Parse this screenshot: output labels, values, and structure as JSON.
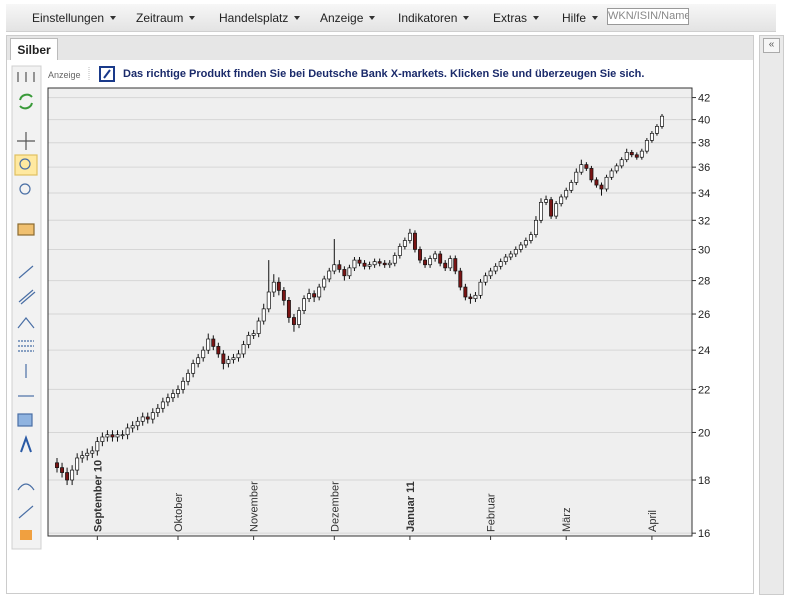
{
  "menu": [
    "Einstellungen",
    "Zeitraum",
    "Handelsplatz",
    "Anzeige",
    "Indikatoren",
    "Extras",
    "Hilfe"
  ],
  "search_placeholder": "WKN/ISIN/Name",
  "tab": "Silber",
  "ad": {
    "label": "Anzeige",
    "text": "Das richtige Produkt finden Sie bei Deutsche Bank X-markets. Klicken Sie und überzeugen Sie sich."
  },
  "chart_data": {
    "type": "candlestick",
    "log_scale": true,
    "grid": true,
    "up_color": "#ffffff",
    "down_color": "#7a1414",
    "categories": [
      null,
      null,
      null,
      null,
      null,
      null,
      null,
      null,
      "September 10",
      null,
      null,
      null,
      null,
      null,
      null,
      null,
      null,
      null,
      null,
      null,
      null,
      null,
      null,
      null,
      "Oktober",
      null,
      null,
      null,
      null,
      null,
      null,
      null,
      null,
      null,
      null,
      null,
      null,
      null,
      null,
      "November",
      null,
      null,
      null,
      null,
      null,
      null,
      null,
      null,
      null,
      null,
      null,
      null,
      null,
      null,
      null,
      "Dezember",
      null,
      null,
      null,
      null,
      null,
      null,
      null,
      null,
      null,
      null,
      null,
      null,
      null,
      null,
      "Januar 11",
      null,
      null,
      null,
      null,
      null,
      null,
      null,
      null,
      null,
      null,
      null,
      null,
      null,
      null,
      null,
      "Februar",
      null,
      null,
      null,
      null,
      null,
      null,
      null,
      null,
      null,
      null,
      null,
      null,
      null,
      null,
      "März",
      null,
      null,
      null,
      null,
      null,
      null,
      null,
      null,
      null,
      null,
      null,
      null,
      null,
      null,
      null,
      null,
      "April",
      null,
      null
    ],
    "open": [
      18.7,
      18.5,
      18.3,
      18.0,
      18.4,
      18.9,
      19.0,
      19.1,
      19.2,
      19.6,
      19.8,
      19.9,
      19.8,
      19.9,
      19.9,
      20.2,
      20.3,
      20.5,
      20.7,
      20.6,
      20.9,
      21.1,
      21.4,
      21.6,
      21.8,
      22.0,
      22.4,
      22.8,
      23.3,
      23.6,
      24.0,
      24.6,
      24.2,
      23.8,
      23.3,
      23.5,
      23.6,
      23.8,
      24.3,
      24.8,
      24.9,
      25.6,
      26.3,
      27.3,
      27.9,
      27.4,
      26.8,
      25.8,
      25.4,
      26.2,
      26.9,
      27.2,
      27.0,
      27.6,
      28.1,
      28.6,
      29.0,
      28.7,
      28.3,
      28.8,
      29.3,
      29.1,
      28.9,
      29.0,
      29.2,
      29.1,
      29.0,
      29.1,
      29.6,
      30.2,
      30.6,
      31.1,
      30.0,
      29.3,
      29.0,
      29.4,
      29.7,
      29.1,
      28.8,
      29.4,
      28.6,
      27.6,
      27.0,
      26.9,
      27.1,
      27.9,
      28.3,
      28.6,
      28.9,
      29.2,
      29.5,
      29.7,
      30.0,
      30.3,
      30.6,
      31.0,
      32.0,
      33.3,
      33.5,
      32.3,
      33.2,
      33.7,
      34.2,
      34.8,
      35.6,
      36.2,
      35.9,
      35.0,
      34.6,
      34.3,
      35.2,
      35.7,
      36.1,
      36.6,
      37.2,
      37.0,
      36.8,
      37.3,
      38.2,
      38.8,
      39.4
    ],
    "high": [
      18.9,
      18.7,
      18.5,
      18.6,
      19.1,
      19.2,
      19.3,
      19.4,
      19.8,
      20.0,
      20.1,
      20.1,
      20.1,
      20.1,
      20.4,
      20.5,
      20.7,
      20.9,
      20.9,
      21.1,
      21.3,
      21.6,
      21.8,
      22.0,
      22.2,
      22.6,
      23.0,
      23.5,
      23.8,
      24.2,
      24.9,
      24.8,
      24.4,
      24.0,
      23.7,
      23.8,
      24.0,
      24.5,
      25.0,
      25.1,
      25.8,
      26.6,
      29.3,
      28.4,
      28.2,
      27.6,
      27.0,
      26.0,
      26.4,
      27.1,
      27.5,
      27.4,
      27.8,
      28.3,
      28.8,
      30.7,
      29.3,
      28.9,
      29.0,
      29.5,
      29.5,
      29.3,
      29.2,
      29.4,
      29.4,
      29.3,
      29.3,
      29.8,
      30.4,
      30.8,
      31.4,
      31.3,
      30.2,
      29.5,
      29.6,
      29.9,
      29.9,
      29.3,
      29.6,
      29.6,
      28.8,
      27.8,
      27.2,
      27.3,
      28.1,
      28.5,
      28.8,
      29.1,
      29.4,
      29.7,
      29.9,
      30.2,
      30.5,
      30.8,
      31.2,
      32.3,
      33.6,
      33.8,
      33.7,
      33.4,
      33.9,
      34.4,
      35.0,
      35.9,
      36.6,
      36.4,
      36.1,
      35.2,
      34.8,
      35.4,
      35.9,
      36.3,
      36.8,
      37.5,
      37.4,
      37.2,
      37.5,
      38.4,
      39.0,
      39.6,
      40.5
    ],
    "low": [
      18.3,
      18.1,
      17.8,
      17.8,
      18.2,
      18.7,
      18.8,
      18.9,
      19.0,
      19.4,
      19.6,
      19.6,
      19.6,
      19.7,
      19.7,
      20.0,
      20.1,
      20.3,
      20.4,
      20.4,
      20.7,
      20.9,
      21.2,
      21.4,
      21.6,
      21.8,
      22.2,
      22.6,
      23.1,
      23.4,
      23.8,
      24.0,
      23.6,
      23.0,
      23.1,
      23.3,
      23.4,
      23.6,
      24.1,
      24.6,
      24.7,
      25.4,
      26.1,
      27.0,
      27.1,
      26.5,
      25.5,
      25.0,
      25.2,
      26.0,
      26.7,
      26.7,
      26.8,
      27.4,
      27.9,
      28.4,
      28.5,
      28.0,
      28.1,
      28.6,
      28.9,
      28.7,
      28.7,
      28.8,
      28.9,
      28.8,
      28.8,
      28.9,
      29.4,
      30.0,
      30.4,
      29.8,
      29.1,
      28.8,
      28.8,
      29.2,
      28.9,
      28.6,
      28.6,
      28.4,
      27.4,
      26.8,
      26.6,
      26.7,
      26.9,
      27.7,
      28.1,
      28.4,
      28.7,
      29.0,
      29.3,
      29.5,
      29.8,
      30.1,
      30.4,
      30.8,
      31.8,
      33.1,
      32.1,
      32.1,
      33.0,
      33.5,
      34.0,
      34.6,
      35.4,
      35.7,
      34.8,
      34.4,
      33.8,
      34.1,
      35.0,
      35.5,
      35.9,
      36.4,
      36.8,
      36.6,
      36.6,
      37.1,
      38.0,
      38.6,
      39.2
    ],
    "close": [
      18.5,
      18.3,
      18.0,
      18.4,
      18.9,
      19.0,
      19.1,
      19.2,
      19.6,
      19.8,
      19.9,
      19.8,
      19.9,
      19.9,
      20.2,
      20.3,
      20.5,
      20.7,
      20.6,
      20.9,
      21.1,
      21.4,
      21.6,
      21.8,
      22.0,
      22.4,
      22.8,
      23.3,
      23.6,
      24.0,
      24.6,
      24.2,
      23.8,
      23.3,
      23.5,
      23.6,
      23.8,
      24.3,
      24.8,
      24.9,
      25.6,
      26.3,
      27.3,
      27.9,
      27.4,
      26.8,
      25.8,
      25.4,
      26.2,
      26.9,
      27.2,
      27.0,
      27.6,
      28.1,
      28.6,
      29.0,
      28.7,
      28.3,
      28.8,
      29.3,
      29.1,
      28.9,
      29.0,
      29.2,
      29.1,
      29.0,
      29.1,
      29.6,
      30.2,
      30.6,
      31.1,
      30.0,
      29.3,
      29.0,
      29.4,
      29.7,
      29.1,
      28.8,
      29.4,
      28.6,
      27.6,
      27.0,
      26.9,
      27.1,
      27.9,
      28.3,
      28.6,
      28.9,
      29.2,
      29.5,
      29.7,
      30.0,
      30.3,
      30.6,
      31.0,
      32.0,
      33.3,
      33.5,
      32.3,
      33.2,
      33.7,
      34.2,
      34.8,
      35.6,
      36.2,
      35.9,
      35.0,
      34.6,
      34.3,
      35.2,
      35.7,
      36.1,
      36.6,
      37.2,
      37.0,
      36.8,
      37.3,
      38.2,
      38.8,
      39.4,
      40.3
    ],
    "ylim": [
      15.9,
      42.9
    ],
    "yticks": [
      16,
      18,
      20,
      22,
      24,
      26,
      28,
      30,
      32,
      34,
      36,
      38,
      40,
      42
    ]
  }
}
